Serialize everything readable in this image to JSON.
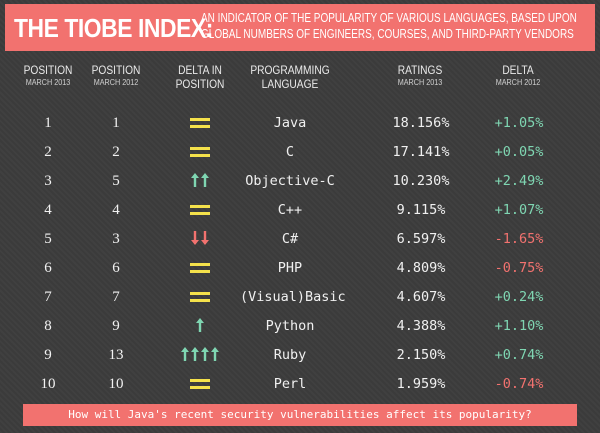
{
  "banner": {
    "title": "THE TIOBE INDEX:",
    "subtitle_line1": "AN INDICATOR OF THE POPULARITY OF VARIOUS LANGUAGES, BASED UPON",
    "subtitle_line2": "GLOBAL NUMBERS OF ENGINEERS, COURSES, AND THIRD-PARTY VENDORS"
  },
  "headers": {
    "pos2013_main": "POSITION",
    "pos2013_sub": "MARCH 2013",
    "pos2012_main": "POSITION",
    "pos2012_sub": "MARCH 2012",
    "delta_pos_line1": "DELTA IN",
    "delta_pos_line2": "POSITION",
    "lang_line1": "PROGRAMMING",
    "lang_line2": "LANGUAGE",
    "ratings_main": "RATINGS",
    "ratings_sub": "MARCH 2013",
    "delta_main": "DELTA",
    "delta_sub": "MARCH 2012"
  },
  "rows": [
    {
      "pos2013": "1",
      "pos2012": "1",
      "change": "same",
      "arrows": 0,
      "language": "Java",
      "rating": "18.156%",
      "delta": "+1.05%",
      "delta_sign": "pos"
    },
    {
      "pos2013": "2",
      "pos2012": "2",
      "change": "same",
      "arrows": 0,
      "language": "C",
      "rating": "17.141%",
      "delta": "+0.05%",
      "delta_sign": "pos"
    },
    {
      "pos2013": "3",
      "pos2012": "5",
      "change": "up",
      "arrows": 2,
      "language": "Objective-C",
      "rating": "10.230%",
      "delta": "+2.49%",
      "delta_sign": "pos"
    },
    {
      "pos2013": "4",
      "pos2012": "4",
      "change": "same",
      "arrows": 0,
      "language": "C++",
      "rating": "9.115%",
      "delta": "+1.07%",
      "delta_sign": "pos"
    },
    {
      "pos2013": "5",
      "pos2012": "3",
      "change": "down",
      "arrows": 2,
      "language": "C#",
      "rating": "6.597%",
      "delta": "-1.65%",
      "delta_sign": "neg"
    },
    {
      "pos2013": "6",
      "pos2012": "6",
      "change": "same",
      "arrows": 0,
      "language": "PHP",
      "rating": "4.809%",
      "delta": "-0.75%",
      "delta_sign": "neg"
    },
    {
      "pos2013": "7",
      "pos2012": "7",
      "change": "same",
      "arrows": 0,
      "language": "(Visual)Basic",
      "rating": "4.607%",
      "delta": "+0.24%",
      "delta_sign": "pos"
    },
    {
      "pos2013": "8",
      "pos2012": "9",
      "change": "up",
      "arrows": 1,
      "language": "Python",
      "rating": "4.388%",
      "delta": "+1.10%",
      "delta_sign": "pos"
    },
    {
      "pos2013": "9",
      "pos2012": "13",
      "change": "up",
      "arrows": 4,
      "language": "Ruby",
      "rating": "2.150%",
      "delta": "+0.74%",
      "delta_sign": "pos"
    },
    {
      "pos2013": "10",
      "pos2012": "10",
      "change": "same",
      "arrows": 0,
      "language": "Perl",
      "rating": "1.959%",
      "delta": "-0.74%",
      "delta_sign": "neg"
    }
  ],
  "footer": {
    "question": "How will Java's recent security vulnerabilities affect its popularity?"
  },
  "colors": {
    "banner": "#f2726f",
    "background": "#3c3c3c",
    "equal": "#f4e14b",
    "up": "#7fd6b2",
    "down": "#f2726f"
  }
}
